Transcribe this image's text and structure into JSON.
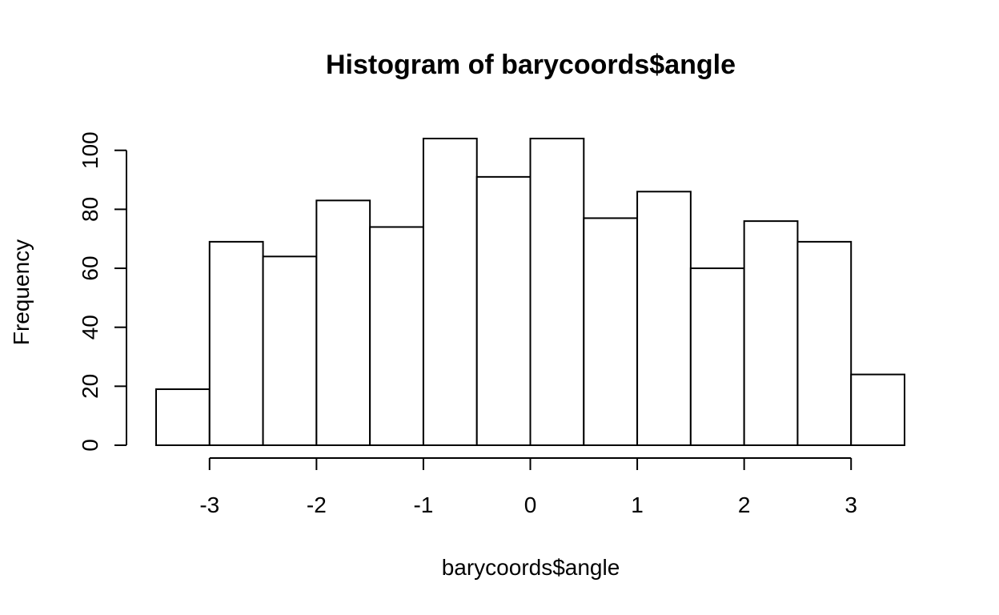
{
  "chart_data": {
    "type": "bar",
    "title": "Histogram of barycoords$angle",
    "xlabel": "barycoords$angle",
    "ylabel": "Frequency",
    "bin_edges": [
      -3.5,
      -3.0,
      -2.5,
      -2.0,
      -1.5,
      -1.0,
      -0.5,
      0.0,
      0.5,
      1.0,
      1.5,
      2.0,
      2.5,
      3.0,
      3.5
    ],
    "values": [
      19,
      69,
      64,
      83,
      74,
      104,
      91,
      104,
      77,
      86,
      60,
      76,
      69,
      24
    ],
    "x_ticks": [
      -3,
      -2,
      -1,
      0,
      1,
      2,
      3
    ],
    "x_tick_labels": [
      "-3",
      "-2",
      "-1",
      "0",
      "1",
      "2",
      "3"
    ],
    "y_ticks": [
      0,
      20,
      40,
      60,
      80,
      100
    ],
    "y_tick_labels": [
      "0",
      "20",
      "40",
      "60",
      "80",
      "100"
    ],
    "ylim": [
      0,
      104
    ],
    "grid": false,
    "colors": {
      "bar_fill": "#ffffff",
      "bar_stroke": "#000000"
    }
  }
}
